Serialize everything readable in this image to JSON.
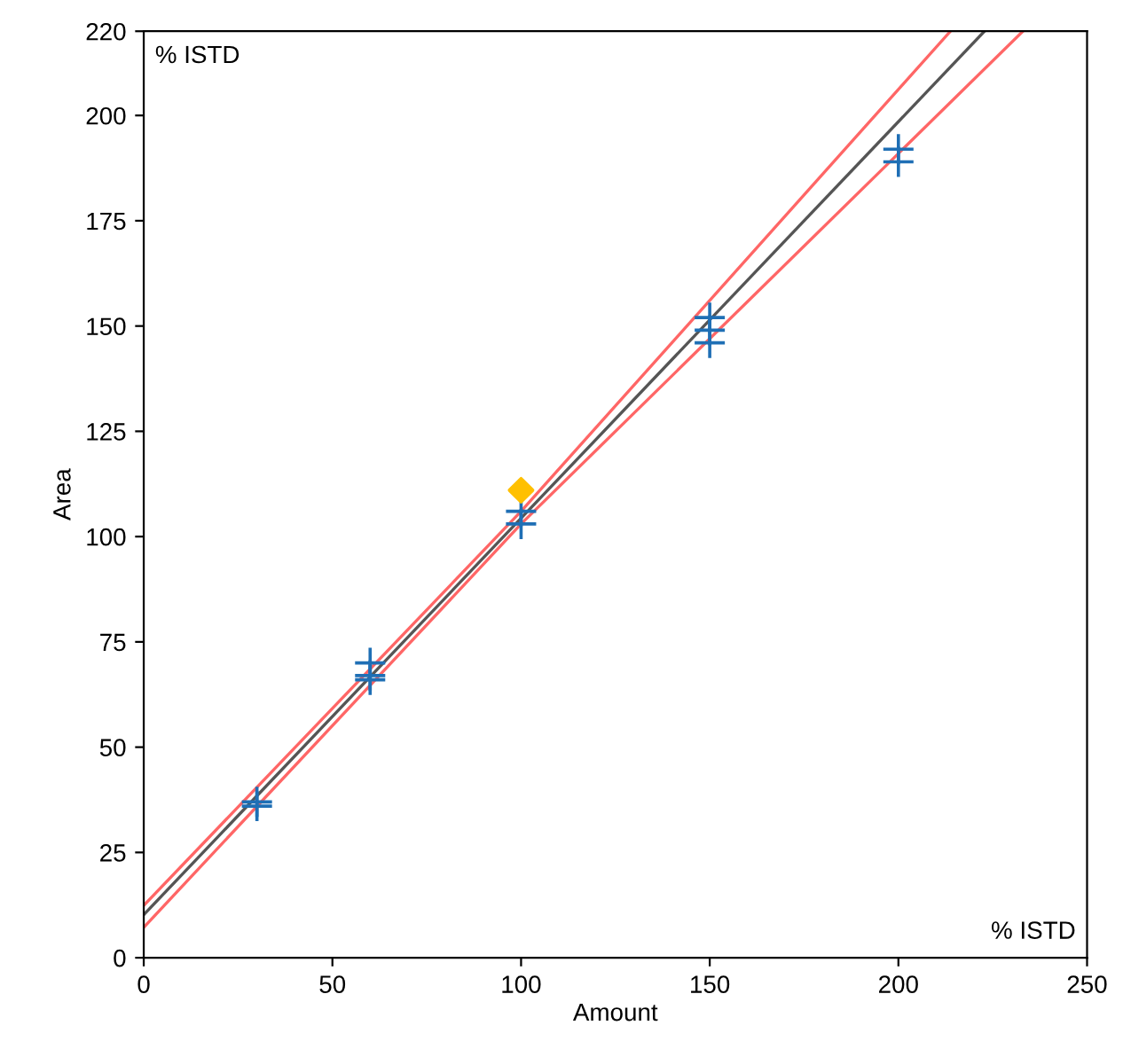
{
  "chart_data": {
    "type": "scatter",
    "xlabel": "Amount",
    "ylabel": "Area",
    "annotations": [
      "% ISTD",
      "% ISTD"
    ],
    "xlim": [
      0,
      250
    ],
    "xticks": [
      0,
      50,
      100,
      150,
      200,
      250
    ],
    "ylim": [
      0,
      220
    ],
    "yticks": [
      0,
      25,
      50,
      75,
      100,
      125,
      150,
      175,
      200,
      220
    ],
    "grid": false,
    "legend": false,
    "series": [
      {
        "type": "line",
        "color": "#ff6666",
        "x": [
          0,
          100,
          213.8
        ],
        "values": [
          12.4,
          106,
          220
        ],
        "marker": "none"
      },
      {
        "type": "line",
        "color": "#ff6666",
        "x": [
          0,
          100,
          233
        ],
        "values": [
          7.2,
          103,
          220
        ],
        "marker": "none"
      },
      {
        "type": "line",
        "color": "#555555",
        "x": [
          0,
          222.8
        ],
        "values": [
          10.2,
          220
        ],
        "marker": "none"
      },
      {
        "color": "#1f6fb5",
        "marker": "cross",
        "x": [
          30,
          30,
          60,
          60,
          60,
          100,
          100,
          150,
          150,
          150,
          200,
          200
        ],
        "values": [
          37,
          36,
          70,
          67,
          66,
          106,
          103,
          152,
          149,
          146,
          192,
          189
        ]
      },
      {
        "color": "#ffc000",
        "marker": "diamond",
        "x": [
          100
        ],
        "values": [
          111
        ]
      }
    ]
  }
}
